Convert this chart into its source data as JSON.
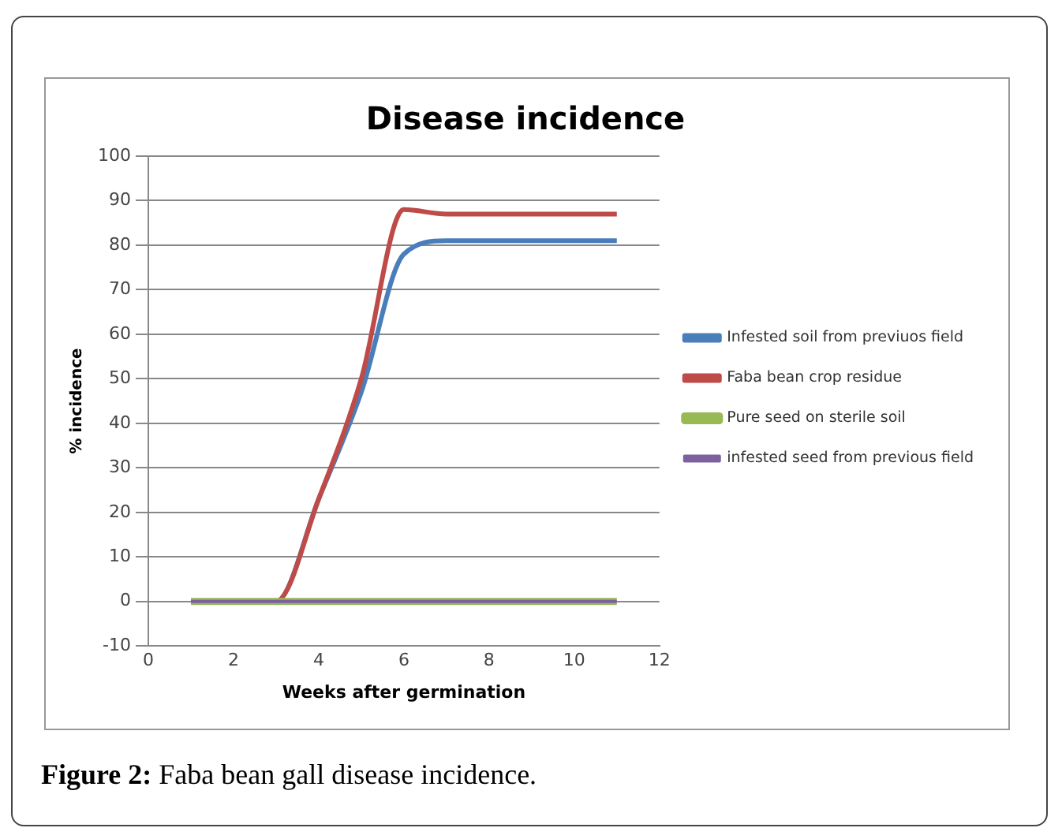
{
  "chart_data": {
    "type": "line",
    "title": "Disease incidence",
    "xlabel": "Weeks after germination",
    "ylabel": "% incidence",
    "x": [
      1,
      2,
      3,
      4,
      5,
      6,
      7,
      8,
      9,
      10,
      11
    ],
    "series": [
      {
        "name": "Infested soil from previuos field",
        "color": "#4a7ebb",
        "values": [
          0,
          0,
          0,
          23,
          47,
          78,
          81,
          81,
          81,
          81,
          81
        ]
      },
      {
        "name": "Faba bean crop residue",
        "color": "#be4b48",
        "values": [
          0,
          0,
          0,
          23,
          50,
          88,
          87,
          87,
          87,
          87,
          87
        ]
      },
      {
        "name": "Pure seed on sterile soil",
        "color": "#98b954",
        "values": [
          0,
          0,
          0,
          0,
          0,
          0,
          0,
          0,
          0,
          0,
          0
        ]
      },
      {
        "name": "infested seed from previous field",
        "color": "#7d60a0",
        "values": [
          0,
          0,
          0,
          0,
          0,
          0,
          0,
          0,
          0,
          0,
          0
        ]
      }
    ],
    "xlim": [
      0,
      12
    ],
    "xticks": [
      0,
      2,
      4,
      6,
      8,
      10,
      12
    ],
    "ylim": [
      -10,
      100
    ],
    "yticks": [
      -10,
      0,
      10,
      20,
      30,
      40,
      50,
      60,
      70,
      80,
      90,
      100
    ],
    "grid": "y",
    "legend": "right",
    "marker": "none",
    "line_style": "solid",
    "annotations": [
      "Figure 2: Faba bean gall disease incidence."
    ]
  }
}
